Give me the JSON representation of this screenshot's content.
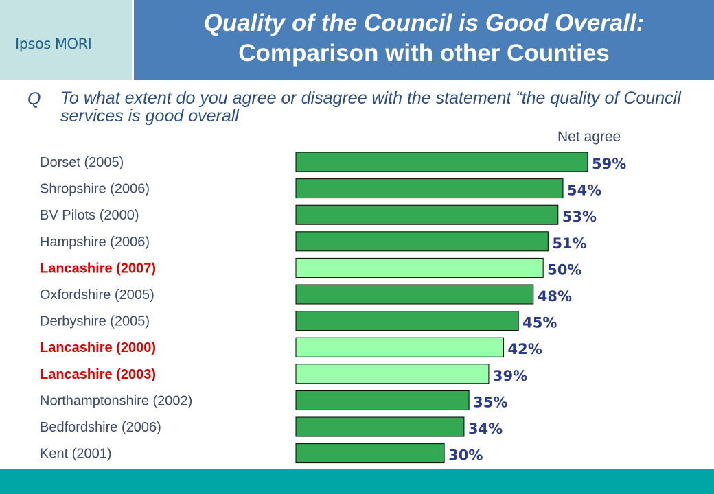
{
  "logo": {
    "text": "Ipsos MORI"
  },
  "header": {
    "title_line1": "Quality of the Council is Good Overall:",
    "title_line2": "Comparison with other Counties"
  },
  "question": {
    "prefix": "Q",
    "text": "To what extent do you agree or disagree with the statement “the quality of Council services is good overall"
  },
  "colors": {
    "bar_default": "#34a853",
    "bar_highlight": "#99ffaa",
    "label_default": "#3b4a6b",
    "label_highlight": "#e00000",
    "value_text": "#2a3a8c",
    "bottom_bar": "#00a6a6"
  },
  "chart_data": {
    "type": "bar",
    "orientation": "horizontal",
    "value_header": "Net agree",
    "categories": [
      "Dorset (2005)",
      "Shropshire (2006)",
      "BV Pilots (2000)",
      "Hampshire (2006)",
      "Lancashire (2007)",
      "Oxfordshire (2005)",
      "Derbyshire (2005)",
      "Lancashire (2000)",
      "Lancashire (2003)",
      "Northamptonshire (2002)",
      "Bedfordshire (2006)",
      "Kent (2001)"
    ],
    "values": [
      59,
      54,
      53,
      51,
      50,
      48,
      45,
      42,
      39,
      35,
      34,
      30
    ],
    "value_labels": [
      "59%",
      "54%",
      "53%",
      "51%",
      "50%",
      "48%",
      "45%",
      "42%",
      "39%",
      "35%",
      "34%",
      "30%"
    ],
    "highlighted": [
      false,
      false,
      false,
      false,
      true,
      false,
      false,
      true,
      true,
      false,
      false,
      false
    ],
    "xlim": [
      0,
      59
    ]
  }
}
